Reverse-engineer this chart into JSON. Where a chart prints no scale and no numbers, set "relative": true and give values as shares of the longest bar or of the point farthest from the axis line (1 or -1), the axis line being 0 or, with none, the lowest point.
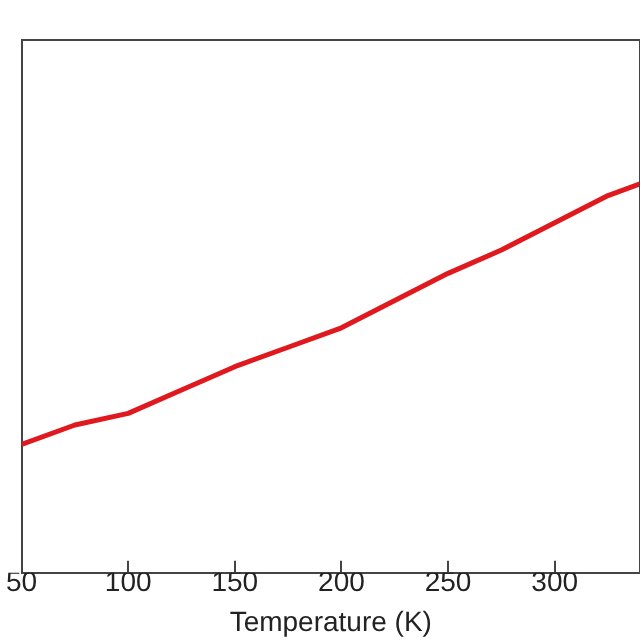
{
  "chart_data": {
    "type": "line",
    "xlabel": "Temperature (K)",
    "relative": true,
    "xlim": [
      50,
      340
    ],
    "xticks": [
      50,
      100,
      150,
      200,
      250,
      300
    ],
    "x": [
      50,
      75,
      100,
      125,
      150,
      175,
      200,
      225,
      250,
      275,
      300,
      325,
      340
    ],
    "series": [
      {
        "color": "#e0191f",
        "values": [
          0.33,
          0.38,
          0.41,
          0.47,
          0.53,
          0.58,
          0.63,
          0.7,
          0.77,
          0.83,
          0.9,
          0.97,
          1.0
        ]
      }
    ],
    "grid": false,
    "legend": false,
    "marker": "none",
    "line_style": "solid"
  }
}
